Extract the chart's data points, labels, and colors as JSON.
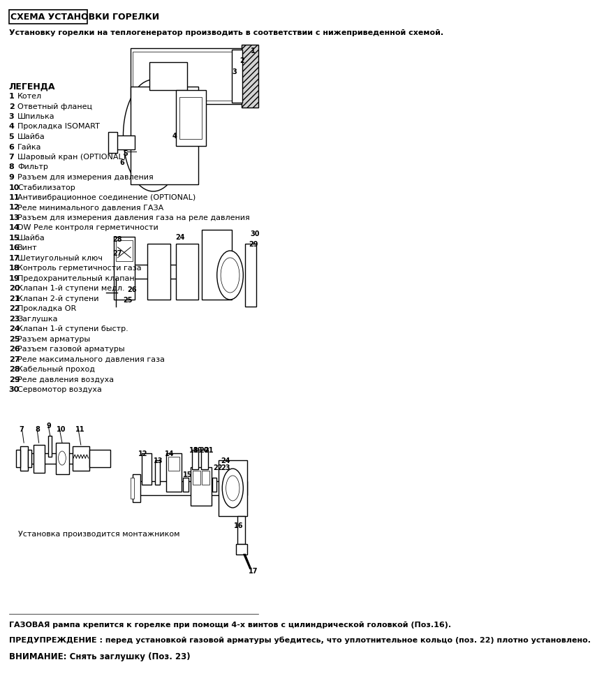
{
  "title": "СХЕМА УСТАНОВКИ ГОРЕЛКИ",
  "subtitle": "Установку горелки на теплогенератор производить в соответствии с нижеприведенной схемой.",
  "legend_title": "ЛЕГЕНДА",
  "legend_items": [
    [
      "1",
      "Котел"
    ],
    [
      "2",
      "Ответный фланец"
    ],
    [
      "3",
      "Шпилька"
    ],
    [
      "4",
      "Прокладка ISOMART"
    ],
    [
      "5",
      "Шайба"
    ],
    [
      "6",
      "Гайка"
    ],
    [
      "7",
      "Шаровый кран (OPTIONAL)"
    ],
    [
      "8",
      "Фильтр"
    ],
    [
      "9",
      "Разъем для измерения давления"
    ],
    [
      "10",
      "Стабилизатор"
    ],
    [
      "11",
      "Антивибрационное соединение (OPTIONAL)"
    ],
    [
      "12",
      "Реле минимального давления ГАЗА"
    ],
    [
      "13",
      "Разъем для измерения давления газа на реле давления"
    ],
    [
      "14",
      "DW Реле контроля герметичности"
    ],
    [
      "15",
      "Шайба"
    ],
    [
      "16",
      "Винт"
    ],
    [
      "17",
      "Шетиугольный ключ"
    ],
    [
      "18",
      "Контроль герметичности газа"
    ],
    [
      "19",
      "Предохранительный клапан"
    ],
    [
      "20",
      "Клапан 1-й ступени медл."
    ],
    [
      "21",
      "Клапан 2-й ступени"
    ],
    [
      "22",
      "Прокладка OR"
    ],
    [
      "23",
      "Заглушка"
    ],
    [
      "24",
      "Клапан 1-й ступени быстр."
    ],
    [
      "25",
      "Разъем арматуры"
    ],
    [
      "26",
      "Разъем газовой арматуры"
    ],
    [
      "27",
      "Реле максимального давления газа"
    ],
    [
      "28",
      "Кабельный проход"
    ],
    [
      "29",
      "Реле давления воздуха"
    ],
    [
      "30",
      "Сервомотор воздуха"
    ]
  ],
  "note1": "ГАЗОВАЯ рампа крепится к горелке при помощи 4-х винтов с цилиндрической головкой (Поз.16).",
  "note2": "ПРЕДУПРЕЖДЕНИЕ : перед установкой газовой арматуры убедитесь, что уплотнительное кольцо (поз. 22) плотно установлено.",
  "note3": "ВНИМАНИЕ: Снять заглушку (Поз. 23)",
  "installer_note": "Установка производится монтажником",
  "bg_color": "#ffffff",
  "text_color": "#000000",
  "border_color": "#000000",
  "title_box_color": "#ffffff"
}
